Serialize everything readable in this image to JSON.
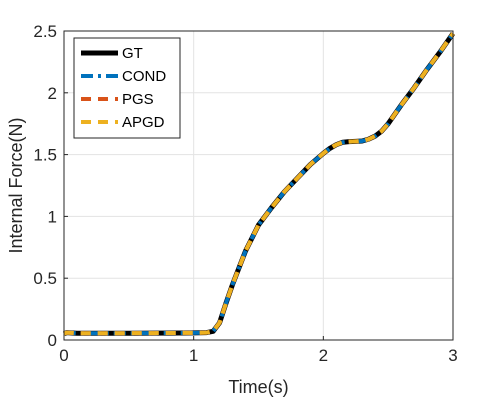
{
  "chart_data": {
    "type": "line",
    "title": "",
    "xlabel": "Time(s)",
    "ylabel": "Internal Force(N)",
    "xlim": [
      0,
      3
    ],
    "ylim": [
      0,
      2.5
    ],
    "x_ticks": [
      "0",
      "1",
      "2",
      "3"
    ],
    "y_ticks": [
      "0",
      "0.5",
      "1",
      "1.5",
      "2",
      "2.5"
    ],
    "grid": true,
    "legend_position": "top-left",
    "x": [
      0,
      0.02,
      0.1,
      0.3,
      0.5,
      0.7,
      0.9,
      1.0,
      1.1,
      1.15,
      1.2,
      1.25,
      1.3,
      1.4,
      1.5,
      1.6,
      1.7,
      1.8,
      1.9,
      2.0,
      2.05,
      2.1,
      2.15,
      2.2,
      2.25,
      2.3,
      2.35,
      2.4,
      2.45,
      2.5,
      2.6,
      2.7,
      2.8,
      2.9,
      3.0
    ],
    "series": [
      {
        "name": "GT",
        "color": "#000000",
        "dash": "solid",
        "values": [
          0.05,
          0.06,
          0.055,
          0.055,
          0.055,
          0.056,
          0.057,
          0.058,
          0.06,
          0.07,
          0.14,
          0.3,
          0.45,
          0.72,
          0.93,
          1.07,
          1.2,
          1.31,
          1.42,
          1.51,
          1.55,
          1.58,
          1.6,
          1.605,
          1.607,
          1.61,
          1.625,
          1.65,
          1.69,
          1.75,
          1.9,
          2.04,
          2.19,
          2.33,
          2.48
        ]
      },
      {
        "name": "COND",
        "color": "#0072BD",
        "dash": "dashdot",
        "values": [
          0.05,
          0.06,
          0.055,
          0.055,
          0.055,
          0.056,
          0.057,
          0.058,
          0.06,
          0.07,
          0.14,
          0.3,
          0.45,
          0.72,
          0.93,
          1.07,
          1.2,
          1.31,
          1.42,
          1.51,
          1.55,
          1.58,
          1.6,
          1.605,
          1.607,
          1.61,
          1.625,
          1.65,
          1.69,
          1.75,
          1.9,
          2.04,
          2.19,
          2.33,
          2.48
        ]
      },
      {
        "name": "PGS",
        "color": "#D95319",
        "dash": "dashed",
        "values": [
          0.05,
          0.06,
          0.055,
          0.055,
          0.055,
          0.056,
          0.057,
          0.058,
          0.06,
          0.07,
          0.14,
          0.3,
          0.45,
          0.72,
          0.93,
          1.07,
          1.2,
          1.31,
          1.42,
          1.51,
          1.55,
          1.58,
          1.6,
          1.605,
          1.607,
          1.61,
          1.625,
          1.65,
          1.69,
          1.75,
          1.9,
          2.04,
          2.19,
          2.33,
          2.48
        ]
      },
      {
        "name": "APGD",
        "color": "#EDB120",
        "dash": "dashed",
        "values": [
          0.05,
          0.06,
          0.055,
          0.055,
          0.055,
          0.056,
          0.057,
          0.058,
          0.06,
          0.07,
          0.14,
          0.3,
          0.45,
          0.72,
          0.93,
          1.07,
          1.2,
          1.31,
          1.42,
          1.51,
          1.55,
          1.58,
          1.6,
          1.605,
          1.607,
          1.61,
          1.625,
          1.65,
          1.69,
          1.75,
          1.9,
          2.04,
          2.19,
          2.33,
          2.48
        ]
      }
    ]
  }
}
